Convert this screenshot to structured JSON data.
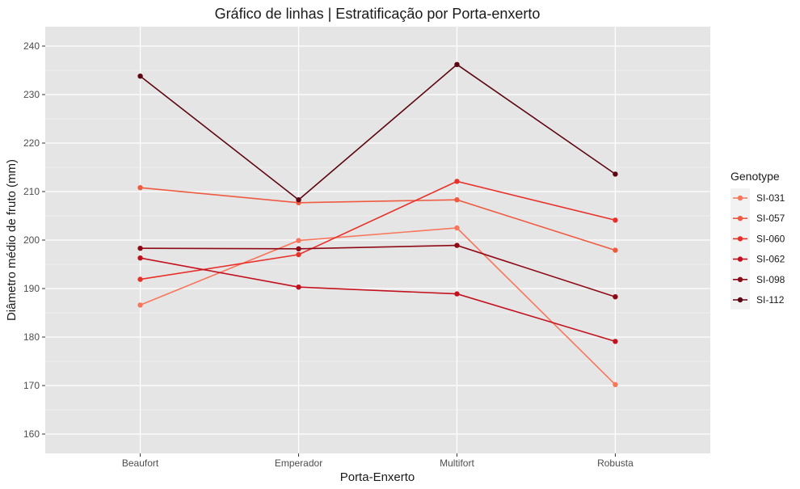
{
  "chart_data": {
    "type": "line",
    "title": "Gráfico de linhas | Estratificação por Porta-enxerto",
    "xlabel": "Porta-Enxerto",
    "ylabel": "Diâmetro médio de fruto (mm)",
    "categories": [
      "Beaufort",
      "Emperador",
      "Multifort",
      "Robusta"
    ],
    "ylim": [
      156,
      244
    ],
    "yticks": [
      160,
      170,
      180,
      190,
      200,
      210,
      220,
      230,
      240
    ],
    "grid": true,
    "legend": {
      "title": "Genotype",
      "position": "right"
    },
    "series": [
      {
        "name": "SI-031",
        "color": "#F8765C",
        "values": [
          186.6,
          199.9,
          202.5,
          170.2
        ]
      },
      {
        "name": "SI-057",
        "color": "#F05A40",
        "values": [
          210.8,
          207.7,
          208.3,
          197.9
        ]
      },
      {
        "name": "SI-060",
        "color": "#E8302A",
        "values": [
          191.9,
          197.0,
          212.1,
          204.1
        ]
      },
      {
        "name": "SI-062",
        "color": "#C3121E",
        "values": [
          196.3,
          190.3,
          188.9,
          179.1
        ]
      },
      {
        "name": "SI-098",
        "color": "#8E0A16",
        "values": [
          198.3,
          198.2,
          198.9,
          188.3
        ]
      },
      {
        "name": "SI-112",
        "color": "#5C0611",
        "values": [
          233.8,
          208.3,
          236.2,
          213.6
        ]
      }
    ]
  }
}
